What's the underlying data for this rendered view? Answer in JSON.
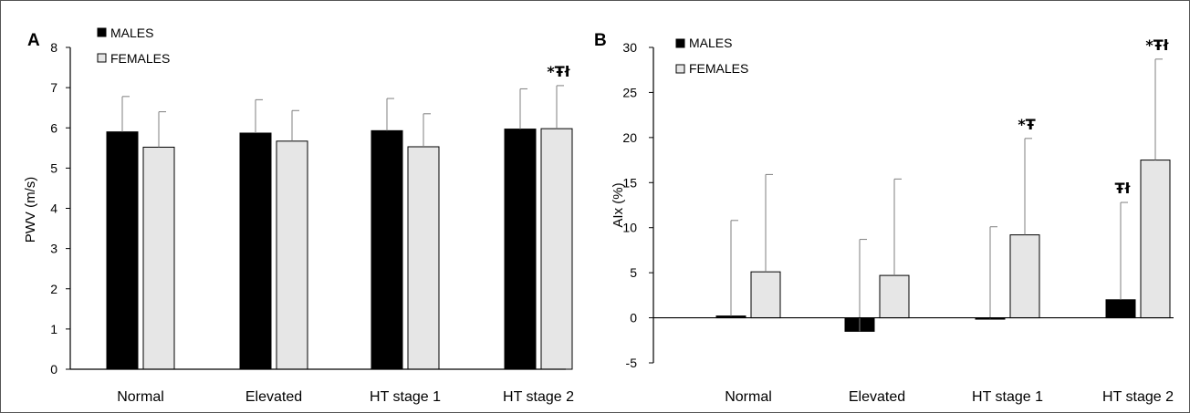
{
  "chart_data": [
    {
      "panel_label": "A",
      "type": "bar",
      "ylabel": "PWV (m/s)",
      "ylim": [
        0,
        8
      ],
      "yticks": [
        0,
        1,
        2,
        3,
        4,
        5,
        6,
        7,
        8
      ],
      "categories": [
        "Normal",
        "Elevated",
        "HT stage 1",
        "HT stage 2"
      ],
      "legend_position": "top-left",
      "series": [
        {
          "name": "MALES",
          "color": "#000000",
          "values": [
            5.9,
            5.87,
            5.93,
            5.97
          ],
          "errors": [
            0.88,
            0.83,
            0.8,
            1.0
          ]
        },
        {
          "name": "FEMALES",
          "color": "#e6e6e6",
          "values": [
            5.52,
            5.67,
            5.53,
            5.98
          ],
          "errors": [
            0.88,
            0.76,
            0.82,
            1.07
          ]
        }
      ],
      "annotations": [
        {
          "category": "HT stage 2",
          "series": "FEMALES",
          "text": "*Ŧł"
        }
      ],
      "grid": false
    },
    {
      "panel_label": "B",
      "type": "bar",
      "ylabel": "AIx (%)",
      "ylim": [
        -5,
        30
      ],
      "yticks": [
        -5,
        0,
        5,
        10,
        15,
        20,
        25,
        30
      ],
      "categories": [
        "Normal",
        "Elevated",
        "HT stage 1",
        "HT stage 2"
      ],
      "legend_position": "top-left",
      "series": [
        {
          "name": "MALES",
          "color": "#000000",
          "values": [
            0.2,
            -1.5,
            -0.1,
            2.0
          ],
          "errors": [
            10.6,
            10.2,
            10.2,
            10.8
          ]
        },
        {
          "name": "FEMALES",
          "color": "#e6e6e6",
          "values": [
            5.1,
            4.7,
            9.2,
            17.5
          ],
          "errors": [
            10.8,
            10.7,
            10.7,
            11.2
          ]
        }
      ],
      "annotations": [
        {
          "category": "HT stage 1",
          "series": "FEMALES",
          "text": "*Ŧ"
        },
        {
          "category": "HT stage 2",
          "series": "MALES",
          "text": "Ŧł"
        },
        {
          "category": "HT stage 2",
          "series": "FEMALES",
          "text": "*Ŧł"
        }
      ],
      "grid": false
    }
  ]
}
